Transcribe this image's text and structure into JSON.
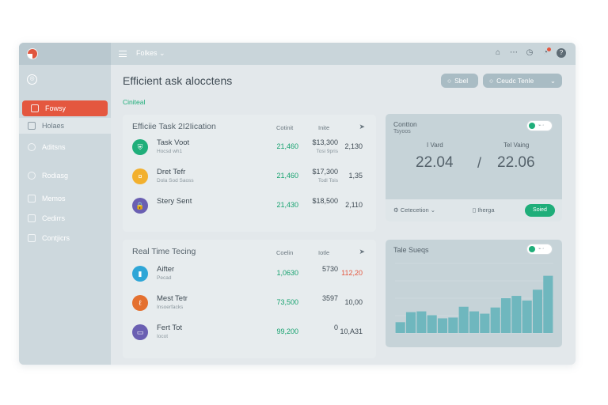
{
  "sidebar": {
    "items": [
      {
        "label": "Fowsy"
      },
      {
        "label": "Holaes"
      },
      {
        "label": "Aditsns"
      },
      {
        "label": "Rodiasg"
      },
      {
        "label": "Memos"
      },
      {
        "label": "Cedirrs"
      },
      {
        "label": "Contjicrs"
      }
    ]
  },
  "topbar": {
    "workspace": "Folkes",
    "icons": [
      "home-icon",
      "more-icon",
      "clock-icon",
      "bell-icon",
      "help-icon"
    ]
  },
  "header": {
    "title": "Efficient ask alocctens",
    "subtab": "Ciniteal",
    "btn1": "Sbel",
    "btn2": "Ceudc Tenle"
  },
  "task_panel": {
    "title": "Efficiie Task 2I2Iication",
    "col1": "Cotinit",
    "col2": "Inite",
    "rows": [
      {
        "icon": "shield-icon",
        "color": "#1fae7a",
        "name": "Task Voot",
        "sub": "Hocsd wh1",
        "v1": "21,460",
        "v2": "$13,300",
        "v2sub": "Tosi 9pris",
        "v3": "2,130",
        "v3red": false
      },
      {
        "icon": "coin-icon",
        "color": "#f2b02e",
        "name": "Dret Tefr",
        "sub": "Dola Sod Saoss",
        "v1": "21,460",
        "v2": "$17,300",
        "v2sub": "Todl Tois",
        "v3": "1,35",
        "v3red": false
      },
      {
        "icon": "lock-icon",
        "color": "#6a5fb2",
        "name": "Stery Sent",
        "sub": "",
        "v1": "21,430",
        "v2": "$18,500",
        "v2sub": "",
        "v3": "2,110",
        "v3red": false
      }
    ]
  },
  "realtime_panel": {
    "title": "Real Time Tecing",
    "col1": "Coelin",
    "col2": "Iotle",
    "rows": [
      {
        "icon": "bars-icon",
        "color": "#2ea6d7",
        "name": "Aifter",
        "sub": "Pecad",
        "v1": "1,0630",
        "v2": "5730",
        "v2sub": "",
        "v3": "112,20",
        "v3red": true
      },
      {
        "icon": "leaf-icon",
        "color": "#e4702f",
        "name": "Mest Tetr",
        "sub": "Insoerfacks",
        "v1": "73,500",
        "v2": "3597",
        "v2sub": "",
        "v3": "10,00",
        "v3red": false
      },
      {
        "icon": "chat-icon",
        "color": "#6a5fb2",
        "name": "Fert Tot",
        "sub": "Iocot",
        "v1": "99,200",
        "v2": "0",
        "v2sub": "",
        "v3": "10,A31",
        "v3red": false
      }
    ]
  },
  "stat_card": {
    "title": "Contton",
    "sub": "Tsyoos",
    "left_label": "I Vard",
    "left_value": "22.04",
    "sep": "/",
    "right_label": "Tel Vaing",
    "right_value": "22.06",
    "foot_select": "Cetecetion",
    "foot_link": "Iherga",
    "foot_btn": "Soied"
  },
  "chart_card": {
    "title": "Tale Sueqs"
  },
  "chart_data": {
    "type": "bar",
    "title": "Tale Sueqs",
    "series_color": "#6fb7be",
    "values": [
      14,
      27,
      28,
      23,
      19,
      20,
      34,
      28,
      25,
      33,
      45,
      48,
      42,
      56,
      74
    ],
    "ylim": [
      0,
      90
    ],
    "grid": true
  }
}
